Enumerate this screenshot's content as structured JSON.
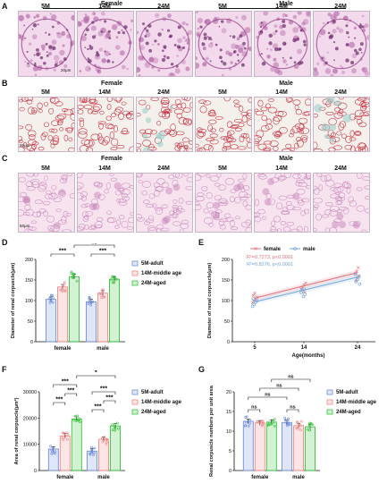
{
  "colors": {
    "adult": "#6f8fe0",
    "middle": "#f08a8a",
    "aged": "#36c43a",
    "female_line": "#e0707a",
    "male_line": "#6fa3d9",
    "he_bg": "#f3d9ec",
    "he_tissue": "#b56aa9",
    "sr_bg": "#f4f1ec",
    "sr_tissue": "#c6283a"
  },
  "panels": {
    "A": {
      "letter": "A",
      "female_label": "Female",
      "male_label": "Male",
      "ages": [
        "5M",
        "14M",
        "24M",
        "5M",
        "14M",
        "24M"
      ],
      "scale_label": "20μm"
    },
    "B": {
      "letter": "B",
      "female_label": "Female",
      "male_label": "Male",
      "ages": [
        "5M",
        "14M",
        "24M",
        "5M",
        "14M",
        "24M"
      ],
      "scale_label": "50μm"
    },
    "C": {
      "letter": "C",
      "female_label": "Female",
      "male_label": "Male",
      "ages": [
        "5M",
        "14M",
        "24M",
        "5M",
        "14M",
        "24M"
      ],
      "scale_label": "50μm"
    },
    "D": {
      "letter": "D"
    },
    "E": {
      "letter": "E"
    },
    "F": {
      "letter": "F"
    },
    "G": {
      "letter": "G"
    }
  },
  "chart_data": [
    {
      "id": "D",
      "type": "bar",
      "ylabel": "Diameter of renal corpuscle(μm)",
      "ylim": [
        0,
        200
      ],
      "yticks": [
        "0",
        "50",
        "100",
        "150",
        "200"
      ],
      "categories": [
        "female",
        "male"
      ],
      "series": [
        {
          "name": "5M-adult",
          "values": [
            103,
            97
          ]
        },
        {
          "name": "14M-middle age",
          "values": [
            133,
            118
          ]
        },
        {
          "name": "24M-aged",
          "values": [
            158,
            152
          ]
        }
      ],
      "significance": [
        "***",
        "***",
        "ns"
      ]
    },
    {
      "id": "E",
      "type": "scatter",
      "ylabel": "Diameter of renal corpuscle(μm)",
      "xlabel": "Age(months)",
      "ylim": [
        0,
        200
      ],
      "yticks": [
        "0",
        "50",
        "100",
        "150",
        "200"
      ],
      "xticks": [
        "5",
        "14",
        "24"
      ],
      "legend": [
        "female",
        "male"
      ],
      "annotations": [
        {
          "text": "R²=0.7273, p<0.0001"
        },
        {
          "text": "R²=0.8276, p<0.0001"
        }
      ],
      "series": [
        {
          "name": "female",
          "fit": [
            [
              5,
              106
            ],
            [
              24,
              168
            ]
          ],
          "points": [
            [
              5,
              95
            ],
            [
              5,
              100
            ],
            [
              5,
              104
            ],
            [
              5,
              108
            ],
            [
              5,
              112
            ],
            [
              5,
              118
            ],
            [
              14,
              120
            ],
            [
              14,
              128
            ],
            [
              14,
              133
            ],
            [
              14,
              138
            ],
            [
              14,
              143
            ],
            [
              24,
              148
            ],
            [
              24,
              155
            ],
            [
              24,
              160
            ],
            [
              24,
              166
            ],
            [
              24,
              172
            ],
            [
              24,
              180
            ]
          ]
        },
        {
          "name": "male",
          "fit": [
            [
              5,
              97
            ],
            [
              24,
              157
            ]
          ],
          "points": [
            [
              5,
              86
            ],
            [
              5,
              91
            ],
            [
              5,
              96
            ],
            [
              5,
              100
            ],
            [
              5,
              104
            ],
            [
              14,
              110
            ],
            [
              14,
              115
            ],
            [
              14,
              119
            ],
            [
              14,
              124
            ],
            [
              14,
              128
            ],
            [
              24,
              140
            ],
            [
              24,
              146
            ],
            [
              24,
              152
            ],
            [
              24,
              158
            ],
            [
              24,
              164
            ]
          ]
        }
      ]
    },
    {
      "id": "F",
      "type": "bar",
      "ylabel": "Area of renal corpuscle(μm²)",
      "ylim": [
        0,
        30000
      ],
      "yticks": [
        "0",
        "10000",
        "20000",
        "30000"
      ],
      "categories": [
        "female",
        "male"
      ],
      "series": [
        {
          "name": "5M-adult",
          "values": [
            8200,
            7400
          ]
        },
        {
          "name": "14M-middle age",
          "values": [
            13200,
            11900
          ]
        },
        {
          "name": "24M-aged",
          "values": [
            19600,
            17000
          ]
        }
      ],
      "significance": [
        "***",
        "***",
        "***",
        "***",
        "***",
        "***",
        "*"
      ]
    },
    {
      "id": "G",
      "type": "bar",
      "ylabel": "Renal corpuscle numbers per unit area",
      "ylim": [
        0,
        20
      ],
      "yticks": [
        "0",
        "5",
        "10",
        "15",
        "20"
      ],
      "categories": [
        "female",
        "male"
      ],
      "series": [
        {
          "name": "5M-adult",
          "values": [
            12.5,
            12.2
          ]
        },
        {
          "name": "14M-middle age",
          "values": [
            12.1,
            11.4
          ]
        },
        {
          "name": "24M-aged",
          "values": [
            12.3,
            11.1
          ]
        }
      ],
      "significance": [
        "ns",
        "ns",
        "ns",
        "ns",
        "ns"
      ]
    }
  ]
}
